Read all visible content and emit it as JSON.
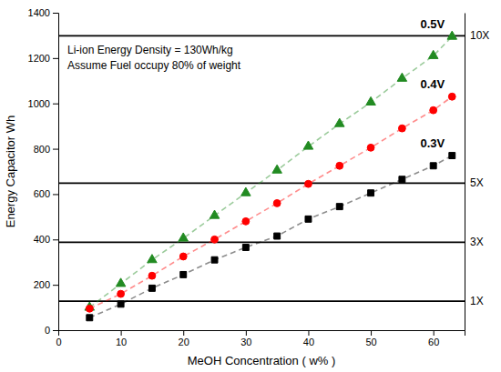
{
  "chart_data": {
    "type": "line",
    "xlabel": "MeOH Concentration ( w% )",
    "ylabel": "Energy Capacitor Wh",
    "annotations": [
      "Li-ion Energy Density = 130Wh/kg",
      "Assume Fuel occupy 80% of weight"
    ],
    "x": [
      5,
      10,
      15,
      20,
      25,
      30,
      35,
      40,
      45,
      50,
      55,
      60,
      63
    ],
    "series": [
      {
        "name": "0.5V",
        "color": "#228B22",
        "marker": "triangle",
        "line_style": "dashed",
        "values": [
          100,
          205,
          310,
          405,
          505,
          605,
          705,
          810,
          910,
          1005,
          1110,
          1210,
          1295
        ]
      },
      {
        "name": "0.4V",
        "color": "#FF0000",
        "marker": "circle",
        "line_style": "dashed",
        "values": [
          95,
          160,
          240,
          325,
          400,
          480,
          560,
          645,
          725,
          805,
          890,
          970,
          1030
        ]
      },
      {
        "name": "0.3V",
        "color": "#000000",
        "marker": "square",
        "line_style": "dashed",
        "values": [
          55,
          115,
          185,
          245,
          310,
          365,
          415,
          490,
          545,
          605,
          665,
          725,
          770
        ]
      }
    ],
    "xlim": [
      0,
      65
    ],
    "xticks": [
      0,
      10,
      20,
      30,
      40,
      50,
      60
    ],
    "ylim": [
      0,
      1400
    ],
    "yticks": [
      0,
      200,
      400,
      600,
      800,
      1000,
      1200,
      1400
    ],
    "y2lim": [
      0,
      1400
    ],
    "y2ticks": [
      {
        "value": 130,
        "label": "1X"
      },
      {
        "value": 390,
        "label": "3X"
      },
      {
        "value": 650,
        "label": "5X"
      },
      {
        "value": 1300,
        "label": "10X"
      }
    ]
  }
}
